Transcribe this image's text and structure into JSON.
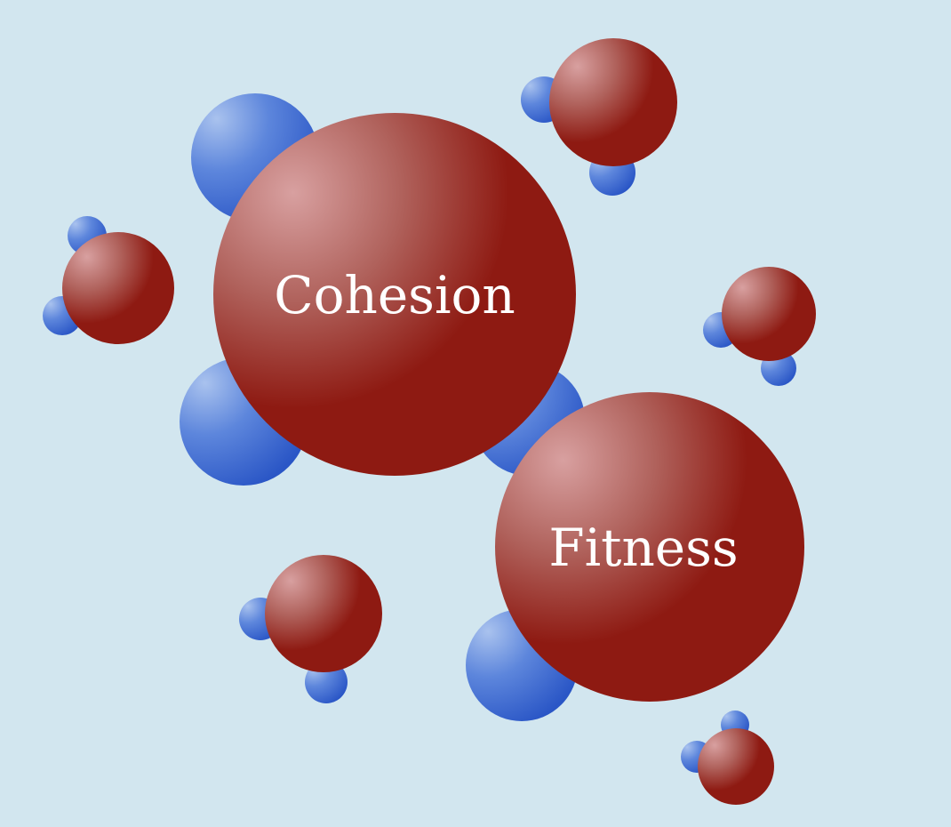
{
  "colors": {
    "background": "#d2e6ef",
    "oxygen": "#8e1a12",
    "hydrogen": "#3467cf",
    "label": "#ffffff"
  },
  "molecules": [
    {
      "name": "cohesion",
      "label": "Cohesion"
    },
    {
      "name": "fitness",
      "label": "Fitness"
    }
  ]
}
